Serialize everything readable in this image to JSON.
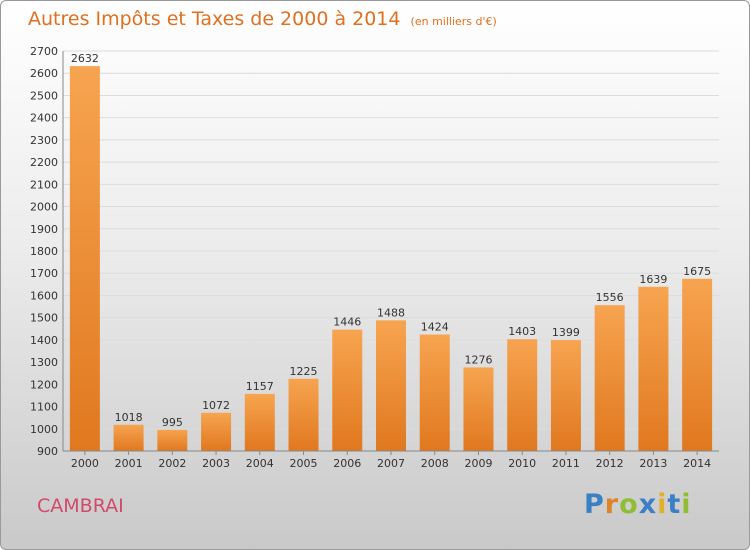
{
  "header": {
    "title": "Autres Impôts et Taxes de 2000 à 2014",
    "unit": "(en milliers d'€)"
  },
  "footer": {
    "city": "CAMBRAI",
    "logo": "Proxiti"
  },
  "colors": {
    "bar_top": "#f7a450",
    "bar_bottom": "#e0781f",
    "title": "#e07020",
    "city": "#d24a6a"
  },
  "chart_data": {
    "type": "bar",
    "categories": [
      "2000",
      "2001",
      "2002",
      "2003",
      "2004",
      "2005",
      "2006",
      "2007",
      "2008",
      "2009",
      "2010",
      "2011",
      "2012",
      "2013",
      "2014"
    ],
    "values": [
      2632,
      1018,
      995,
      1072,
      1157,
      1225,
      1446,
      1488,
      1424,
      1276,
      1403,
      1399,
      1556,
      1639,
      1675
    ],
    "title": "Autres Impôts et Taxes de 2000 à 2014",
    "subtitle": "(en milliers d'€)",
    "ylim": [
      900,
      2700
    ],
    "yticks": [
      900,
      1000,
      1100,
      1200,
      1300,
      1400,
      1500,
      1600,
      1700,
      1800,
      1900,
      2000,
      2100,
      2200,
      2300,
      2400,
      2500,
      2600,
      2700
    ],
    "grid": true,
    "legend": "none"
  }
}
